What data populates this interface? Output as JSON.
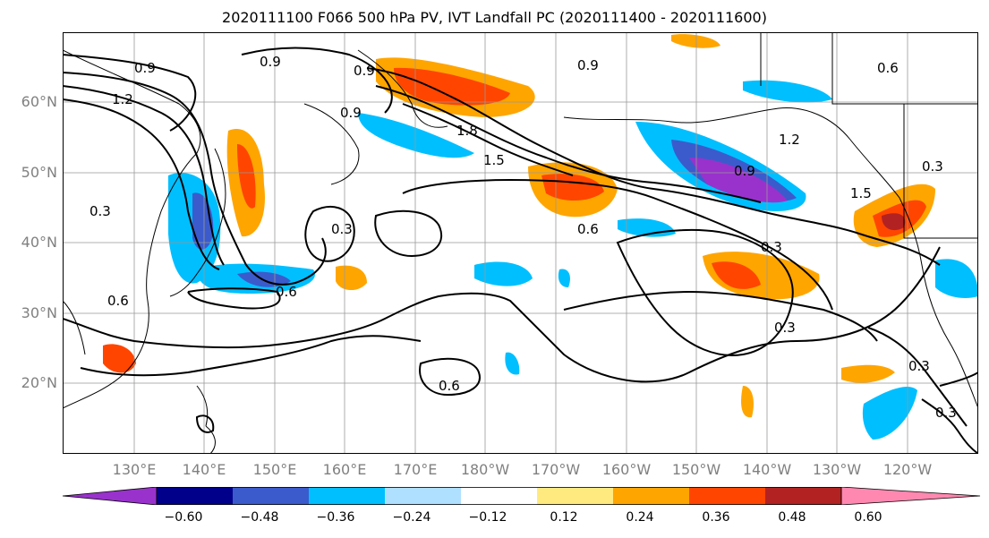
{
  "title": "2020111100 F066 500 hPa PV, IVT Landfall PC (2020111400 - 2020111600)",
  "map": {
    "lat_labels": [
      "60°N",
      "50°N",
      "40°N",
      "30°N",
      "20°N"
    ],
    "lon_labels": [
      "130°E",
      "140°E",
      "150°E",
      "160°E",
      "170°E",
      "180°W",
      "170°W",
      "160°W",
      "150°W",
      "140°W",
      "130°W",
      "120°W"
    ],
    "contour_labels": [
      "0.9",
      "0.9",
      "1.2",
      "0.9",
      "0.9",
      "0.9",
      "0.3",
      "0.6",
      "1.8",
      "1.5",
      "0.6",
      "0.3",
      "0.6",
      "0.6",
      "0.3",
      "0.3",
      "0.3",
      "1.2",
      "0.9",
      "1.5",
      "0.3",
      "0.6",
      "0.3"
    ],
    "colors": {
      "neg_060": "#9932cc",
      "neg_048": "#00008b",
      "neg_036": "#3b5bcc",
      "neg_024": "#00bfff",
      "neg_012": "#b0e0ff",
      "neutral": "#ffffff",
      "pos_012": "#ffea80",
      "pos_024": "#ffa500",
      "pos_036": "#ff4500",
      "pos_048": "#b22222",
      "pos_060": "#ff88b0"
    }
  },
  "colorbar": {
    "tick_labels": [
      "−0.60",
      "−0.48",
      "−0.36",
      "−0.24",
      "−0.12",
      "0.12",
      "0.24",
      "0.36",
      "0.48",
      "0.60"
    ],
    "segment_colors": [
      "#9932cc",
      "#00008b",
      "#3b5bcc",
      "#00bfff",
      "#b0e0ff",
      "#ffffff",
      "#ffea80",
      "#ffa500",
      "#ff4500",
      "#b22222",
      "#ff88b0"
    ]
  }
}
